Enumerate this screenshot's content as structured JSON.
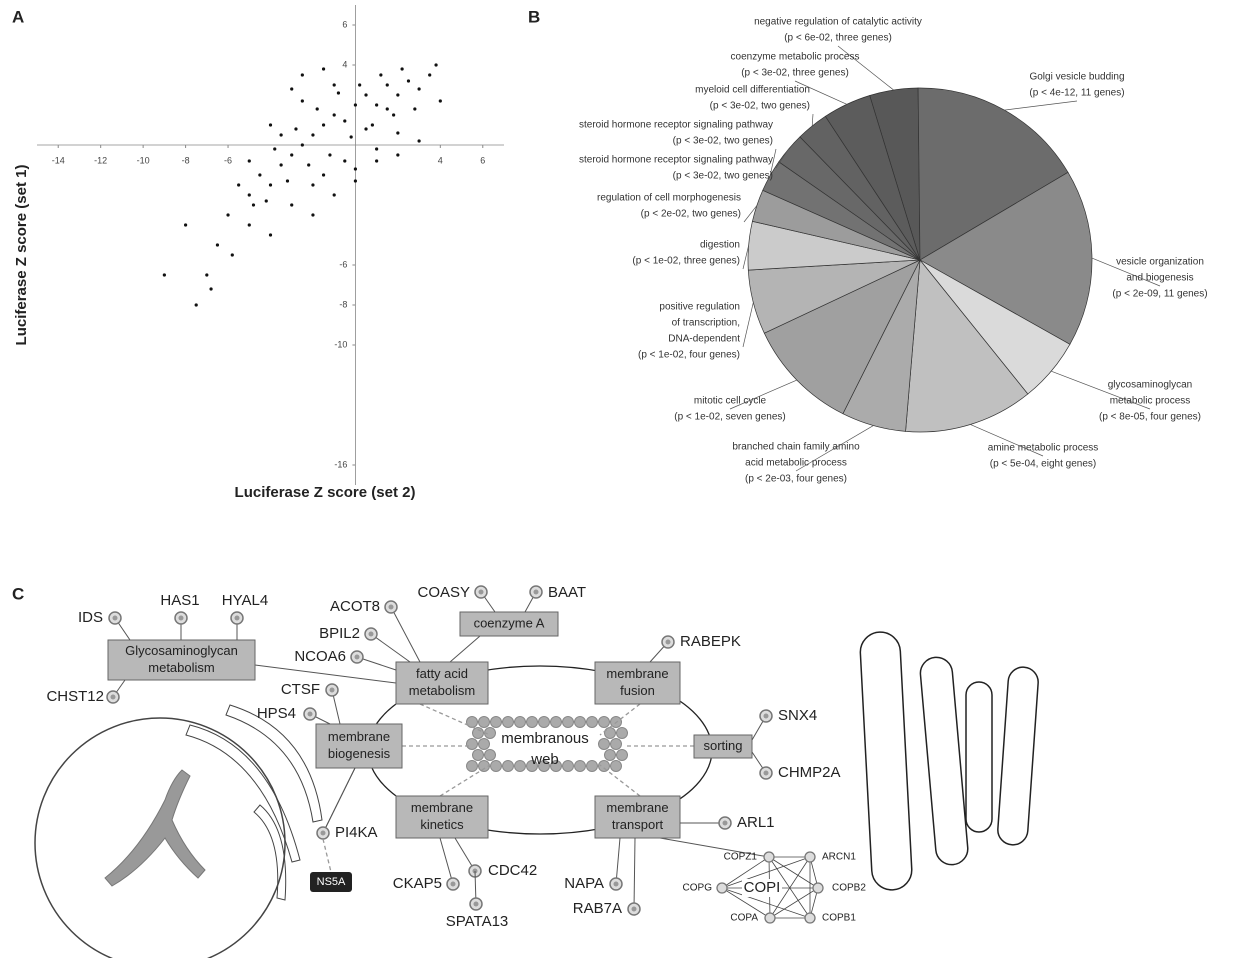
{
  "panel_labels": [
    "A",
    "B",
    "C"
  ],
  "chart_data": [
    {
      "type": "scatter",
      "x_label": "Luciferase Z score (set 2)",
      "y_label": "Luciferase Z score (set 1)",
      "color": "#111",
      "xlim": [
        -15,
        7
      ],
      "ylim": [
        -17,
        7
      ],
      "xticks": [
        -14,
        -12,
        -10,
        -8,
        -6,
        4,
        6
      ],
      "yticks": [
        6,
        4,
        -6,
        -8,
        -10,
        -16
      ],
      "x": [
        -5,
        -4.5,
        -4,
        -3.5,
        -3,
        -2.5,
        -2,
        -1.5,
        -1,
        -0.5,
        0,
        0.5,
        1,
        1.5,
        2,
        2.5,
        3,
        3.5,
        -4.8,
        -4.2,
        -3.8,
        -3.2,
        -2.8,
        -2.2,
        -1.8,
        -1.2,
        -0.8,
        -0.2,
        0.2,
        0.8,
        1.2,
        1.8,
        2.2,
        2.8,
        -3.5,
        -3,
        -2.5,
        -2,
        -1.5,
        -1,
        -0.5,
        0,
        0.5,
        1,
        1.5,
        2,
        -6,
        -5.5,
        -5,
        -6.5,
        -4,
        -7,
        -8,
        -9,
        -7.5,
        -6.8,
        -2,
        -1,
        0,
        1,
        2,
        3,
        -3,
        -4,
        -5,
        -2.5,
        -1.5,
        4,
        3.8,
        -5.8
      ],
      "values": [
        -2.5,
        -1.5,
        -2,
        -1,
        -0.5,
        0,
        0.5,
        1,
        1.5,
        1.2,
        2,
        2.5,
        2,
        3,
        2.5,
        3.2,
        2.8,
        3.5,
        -3,
        -2.8,
        -0.2,
        -1.8,
        0.8,
        -1,
        1.8,
        -0.5,
        2.6,
        0.4,
        3,
        1,
        3.5,
        1.5,
        3.8,
        1.8,
        0.5,
        -3,
        2.2,
        -2,
        -1.5,
        3,
        -0.8,
        -1.2,
        0.8,
        -0.2,
        1.8,
        0.6,
        -3.5,
        -2,
        -4,
        -5,
        -4.5,
        -6.5,
        -4,
        -6.5,
        -8,
        -7.2,
        -3.5,
        -2.5,
        -1.8,
        -0.8,
        -0.5,
        0.2,
        2.8,
        1,
        -0.8,
        3.5,
        3.8,
        2.2,
        4,
        -5.5
      ]
    },
    {
      "type": "pie",
      "labels": [
        [
          "negative regulation of catalytic activity",
          "(p < 6e-02, three genes)"
        ],
        [
          "Golgi vesicle budding",
          "(p < 4e-12, 11 genes)"
        ],
        [
          "vesicle organization",
          "and biogenesis",
          "(p < 2e-09, 11 genes)"
        ],
        [
          "glycosaminoglycan",
          "metabolic process",
          "(p < 8e-05, four genes)"
        ],
        [
          "amine metabolic process",
          "(p < 5e-04, eight genes)"
        ],
        [
          "branched chain family amino",
          "acid metabolic process",
          "(p < 2e-03, four genes)"
        ],
        [
          "mitotic cell cycle",
          "(p < 1e-02, seven genes)"
        ],
        [
          "positive regulation",
          "of transcription,",
          "DNA-dependent",
          "(p < 1e-02, four genes)"
        ],
        [
          "digestion",
          "(p < 1e-02, three genes)"
        ],
        [
          "regulation of cell morphogenesis",
          "(p < 2e-02, two genes)"
        ],
        [
          "steroid hormone receptor signaling pathway",
          "(p < 3e-02, two genes)"
        ],
        [
          "steroid hormone receptor signaling pathway",
          "(p < 3e-02, two genes)"
        ],
        [
          "myeloid cell differentiation",
          "(p < 3e-02, two genes)"
        ],
        [
          "coenzyme metabolic process",
          "(p < 3e-02, three genes)"
        ]
      ],
      "values": [
        3,
        11,
        11,
        4,
        8,
        4,
        7,
        4,
        3,
        2,
        2,
        2,
        2,
        3
      ],
      "colors": [
        "#585858",
        "#6c6c6c",
        "#8a8a8a",
        "#dadada",
        "#c0c0c0",
        "#ababab",
        "#a0a0a0",
        "#b4b4b4",
        "#cbcbcb",
        "#9c9c9c",
        "#727272",
        "#686868",
        "#626262",
        "#5c5c5c"
      ]
    }
  ],
  "diagram": {
    "center": [
      "membranous",
      "web"
    ],
    "modules": [
      [
        "Glycosaminoglycan",
        "metabolism"
      ],
      [
        "coenzyme A"
      ],
      [
        "fatty acid",
        "metabolism"
      ],
      [
        "membrane",
        "fusion"
      ],
      [
        "membrane",
        "biogenesis"
      ],
      [
        "sorting"
      ],
      [
        "membrane",
        "kinetics"
      ],
      [
        "membrane",
        "transport"
      ]
    ],
    "genes": [
      "IDS",
      "HAS1",
      "HYAL4",
      "CHST12",
      "ACOT8",
      "BPIL2",
      "NCOA6",
      "COASY",
      "BAAT",
      "RABEPK",
      "CTSF",
      "HPS4",
      "SNX4",
      "CHMP2A",
      "PI4KA",
      "ARL1",
      "CDC42",
      "CKAP5",
      "SPATA13",
      "NAPA",
      "RAB7A"
    ],
    "viral_protein": "NS5A",
    "complex": {
      "name": "COPI",
      "members": [
        "COPZ1",
        "ARCN1",
        "COPG",
        "COPB2",
        "COPA",
        "COPB1"
      ]
    }
  }
}
